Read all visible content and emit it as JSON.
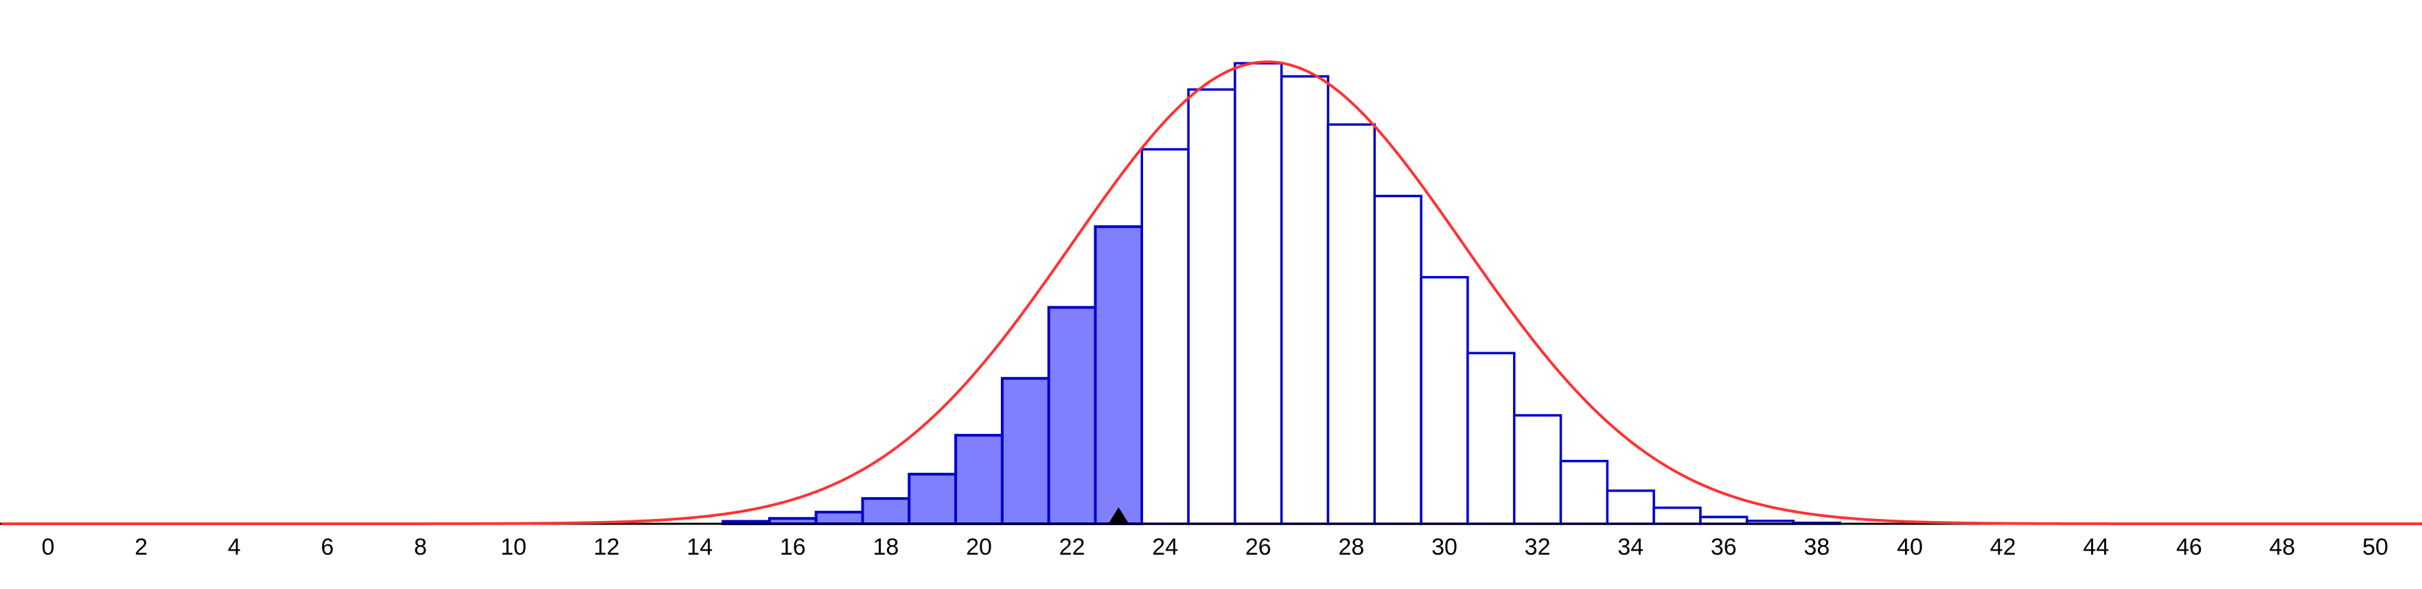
{
  "chart_data": {
    "type": "bar",
    "title": "",
    "xlabel": "",
    "ylabel": "",
    "xlim": [
      -1,
      51
    ],
    "ylim": [
      0,
      0.095
    ],
    "grid": false,
    "legend": "none",
    "bin_width": 1,
    "categories": [
      15,
      16,
      17,
      18,
      19,
      20,
      21,
      22,
      23,
      24,
      25,
      26,
      27,
      28,
      29,
      30,
      31,
      32,
      33,
      34,
      35,
      36,
      37,
      38
    ],
    "values": [
      0.0005,
      0.0011,
      0.0024,
      0.0052,
      0.0102,
      0.0182,
      0.0299,
      0.0445,
      0.0611,
      0.077,
      0.0893,
      0.0947,
      0.092,
      0.0821,
      0.0674,
      0.0507,
      0.0351,
      0.0223,
      0.0129,
      0.0068,
      0.0033,
      0.0014,
      0.0006,
      0.0002
    ],
    "shaded_upto": 23,
    "marker_x": 23,
    "curve": {
      "type": "normal-density",
      "mean": 26.2,
      "sd": 4.2
    },
    "x_ticks": [
      "0",
      "2",
      "4",
      "6",
      "8",
      "10",
      "12",
      "14",
      "16",
      "18",
      "20",
      "22",
      "24",
      "26",
      "28",
      "30",
      "32",
      "34",
      "36",
      "38",
      "40",
      "42",
      "44",
      "46",
      "48",
      "50"
    ],
    "colors": {
      "bar_stroke": "#0000cc",
      "shaded_fill": "#8080ff",
      "unshaded_fill": "#ffffff",
      "curve": "#ff3333",
      "axis": "#000000",
      "marker": "#000000"
    }
  }
}
